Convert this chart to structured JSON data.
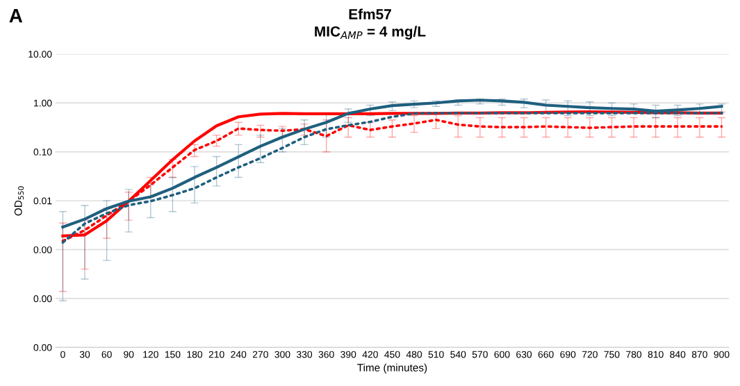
{
  "chart_data": {
    "type": "line",
    "title": "Efm57",
    "subtitle": "MIC$_{AMP}$ = 4 mg/L",
    "xlabel": "Time (minutes)",
    "ylabel": "OD$_{550}$",
    "annotations": [
      "A"
    ],
    "log": true,
    "grid": "y",
    "legend": false,
    "marker": "none",
    "x": [
      0,
      30,
      60,
      90,
      120,
      150,
      180,
      210,
      240,
      270,
      300,
      330,
      360,
      390,
      420,
      450,
      480,
      510,
      540,
      570,
      600,
      630,
      660,
      690,
      720,
      750,
      780,
      810,
      840,
      870,
      900
    ],
    "xlim": [
      -10,
      910
    ],
    "xticks": [
      0,
      30,
      60,
      90,
      120,
      150,
      180,
      210,
      240,
      270,
      300,
      330,
      360,
      390,
      420,
      450,
      480,
      510,
      540,
      570,
      600,
      630,
      660,
      690,
      720,
      750,
      780,
      810,
      840,
      870,
      900
    ],
    "ylim": [
      1e-05,
      10
    ],
    "yticks": [
      {
        "value": 1e-05,
        "label": "0.00"
      },
      {
        "value": 0.0001,
        "label": "0.00"
      },
      {
        "value": 0.001,
        "label": "0.00"
      },
      {
        "value": 0.01,
        "label": "0.01"
      },
      {
        "value": 0.1,
        "label": "0.10"
      },
      {
        "value": 1,
        "label": "1.00"
      },
      {
        "value": 10,
        "label": "10.00"
      }
    ],
    "series": [
      {
        "color": "#ff0000",
        "line_style": "solid",
        "values": [
          0.0019,
          0.002,
          0.0039,
          0.0098,
          0.026,
          0.069,
          0.167,
          0.34,
          0.52,
          0.59,
          0.61,
          0.6,
          0.6,
          0.6,
          0.6,
          0.61,
          0.61,
          0.61,
          0.62,
          0.62,
          0.63,
          0.63,
          0.64,
          0.65,
          0.66,
          0.65,
          0.64,
          0.63,
          0.63,
          0.62,
          0.62
        ]
      },
      {
        "color": "#ff0000",
        "line_style": "dotted",
        "values": [
          0.0015,
          0.0025,
          0.005,
          0.0098,
          0.021,
          0.048,
          0.109,
          0.167,
          0.3,
          0.28,
          0.27,
          0.29,
          0.21,
          0.35,
          0.28,
          0.33,
          0.38,
          0.45,
          0.36,
          0.33,
          0.32,
          0.32,
          0.33,
          0.32,
          0.31,
          0.32,
          0.33,
          0.33,
          0.33,
          0.33,
          0.33
        ],
        "errors": [
          [
            0.00014,
            0.0035
          ],
          [
            0.0004,
            0.004
          ],
          [
            0.0017,
            0.007
          ],
          [
            0.004,
            0.015
          ],
          [
            0.012,
            0.03
          ],
          [
            0.03,
            0.07
          ],
          [
            0.08,
            0.14
          ],
          [
            0.13,
            0.22
          ],
          [
            0.22,
            0.4
          ],
          [
            0.2,
            0.35
          ],
          [
            0.2,
            0.33
          ],
          [
            0.22,
            0.37
          ],
          [
            0.1,
            0.45
          ],
          [
            0.2,
            0.5
          ],
          [
            0.2,
            0.4
          ],
          [
            0.2,
            0.45
          ],
          [
            0.25,
            0.55
          ],
          [
            0.3,
            0.6
          ],
          [
            0.2,
            0.55
          ],
          [
            0.2,
            0.5
          ],
          [
            0.2,
            0.5
          ],
          [
            0.2,
            0.5
          ],
          [
            0.2,
            0.5
          ],
          [
            0.2,
            0.5
          ],
          [
            0.2,
            0.5
          ],
          [
            0.2,
            0.5
          ],
          [
            0.2,
            0.5
          ],
          [
            0.2,
            0.5
          ],
          [
            0.2,
            0.5
          ],
          [
            0.2,
            0.5
          ],
          [
            0.2,
            0.5
          ]
        ]
      },
      {
        "color": "#1f5f7f",
        "line_style": "solid",
        "values": [
          0.0029,
          0.0042,
          0.0069,
          0.0098,
          0.012,
          0.018,
          0.03,
          0.048,
          0.079,
          0.13,
          0.2,
          0.29,
          0.4,
          0.61,
          0.75,
          0.88,
          0.94,
          1.0,
          1.1,
          1.14,
          1.1,
          1.03,
          0.9,
          0.85,
          0.8,
          0.77,
          0.75,
          0.68,
          0.72,
          0.77,
          0.85
        ],
        "errors": [
          [
            9e-05,
            0.006
          ],
          [
            0.00025,
            0.008
          ],
          [
            0.0006,
            0.01
          ],
          [
            0.0023,
            0.017
          ],
          [
            0.0045,
            0.021
          ],
          [
            0.006,
            0.03
          ],
          [
            0.009,
            0.05
          ],
          [
            0.02,
            0.08
          ],
          [
            0.03,
            0.14
          ],
          [
            0.06,
            0.22
          ],
          [
            0.1,
            0.3
          ],
          [
            0.14,
            0.45
          ],
          [
            0.2,
            0.62
          ],
          [
            0.4,
            0.75
          ],
          [
            0.55,
            0.9
          ],
          [
            0.7,
            1.05
          ],
          [
            0.8,
            1.1
          ],
          [
            0.85,
            1.1
          ],
          [
            0.9,
            1.15
          ],
          [
            0.95,
            1.2
          ],
          [
            0.9,
            1.2
          ],
          [
            0.8,
            1.2
          ],
          [
            0.6,
            1.15
          ],
          [
            0.55,
            1.1
          ],
          [
            0.55,
            1.05
          ],
          [
            0.55,
            1.0
          ],
          [
            0.6,
            0.95
          ],
          [
            0.5,
            0.9
          ],
          [
            0.55,
            0.9
          ],
          [
            0.6,
            0.95
          ],
          [
            0.65,
            0.95
          ]
        ]
      },
      {
        "color": "#1f5f7f",
        "line_style": "dotted",
        "values": [
          0.0014,
          0.0034,
          0.0055,
          0.0081,
          0.0098,
          0.013,
          0.018,
          0.03,
          0.048,
          0.074,
          0.12,
          0.2,
          0.29,
          0.35,
          0.41,
          0.52,
          0.61,
          0.62,
          0.62,
          0.62,
          0.62,
          0.62,
          0.62,
          0.62,
          0.62,
          0.62,
          0.62,
          0.62,
          0.62,
          0.62,
          0.62
        ]
      }
    ]
  }
}
